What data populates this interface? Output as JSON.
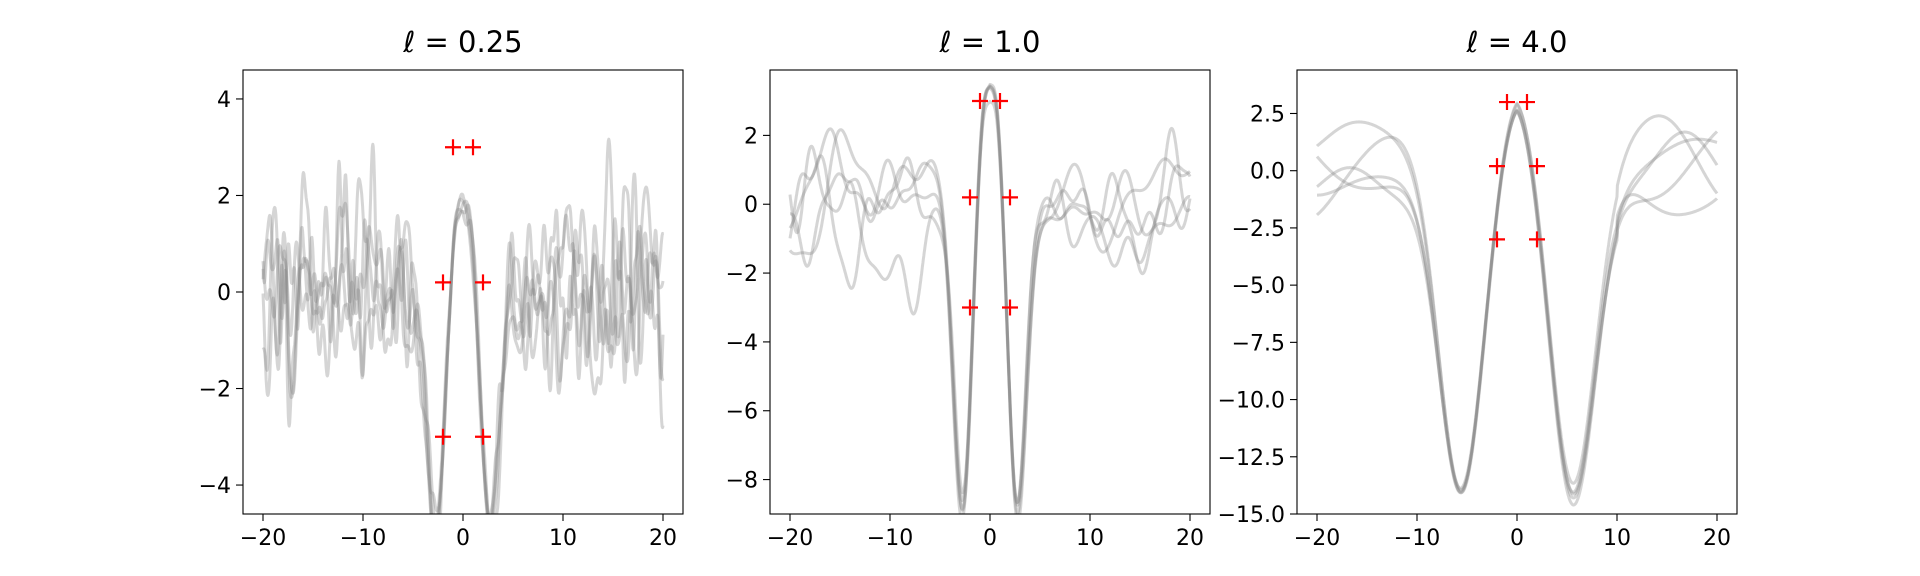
{
  "colors": {
    "samples": "#888888",
    "observations": "#ff0000",
    "axes": "#000000",
    "background": "#ffffff"
  },
  "chart_data": [
    {
      "type": "line",
      "title": "ℓ = 0.25",
      "lengthscale": 0.25,
      "xlim": [
        -22,
        22
      ],
      "ylim": [
        -4.6,
        4.6
      ],
      "xticks": [
        -20,
        -10,
        0,
        10,
        20
      ],
      "xtick_labels": [
        "−20",
        "−10",
        "0",
        "10",
        "20"
      ],
      "yticks": [
        -4,
        -2,
        0,
        2,
        4
      ],
      "ytick_labels": [
        "−4",
        "−2",
        "0",
        "2",
        "4"
      ],
      "n_samples": 5,
      "observations": {
        "x": [
          -2,
          -1,
          1,
          2,
          -2,
          2
        ],
        "y": [
          0.2,
          3.0,
          3.0,
          0.2,
          -3.0,
          -3.0
        ]
      }
    },
    {
      "type": "line",
      "title": "ℓ = 1.0",
      "lengthscale": 1.0,
      "xlim": [
        -22,
        22
      ],
      "ylim": [
        -9.0,
        3.9
      ],
      "xticks": [
        -20,
        -10,
        0,
        10,
        20
      ],
      "xtick_labels": [
        "−20",
        "−10",
        "0",
        "10",
        "20"
      ],
      "yticks": [
        -8,
        -6,
        -4,
        -2,
        0,
        2
      ],
      "ytick_labels": [
        "−8",
        "−6",
        "−4",
        "−2",
        "0",
        "2"
      ],
      "n_samples": 5,
      "observations": {
        "x": [
          -2,
          -1,
          1,
          2,
          -2,
          2
        ],
        "y": [
          0.2,
          3.0,
          3.0,
          0.2,
          -3.0,
          -3.0
        ]
      }
    },
    {
      "type": "line",
      "title": "ℓ = 4.0",
      "lengthscale": 4.0,
      "xlim": [
        -22,
        22
      ],
      "ylim": [
        -15.0,
        4.4
      ],
      "xticks": [
        -20,
        -10,
        0,
        10,
        20
      ],
      "xtick_labels": [
        "−20",
        "−10",
        "0",
        "10",
        "20"
      ],
      "yticks": [
        -15,
        -12.5,
        -10,
        -7.5,
        -5,
        -2.5,
        0,
        2.5
      ],
      "ytick_labels": [
        "−15.0",
        "−12.5",
        "−10.0",
        "−7.5",
        "−5.0",
        "−2.5",
        "0.0",
        "2.5"
      ],
      "n_samples": 5,
      "observations": {
        "x": [
          -2,
          -1,
          1,
          2,
          -2,
          2
        ],
        "y": [
          0.2,
          3.0,
          3.0,
          0.2,
          -3.0,
          -3.0
        ]
      }
    }
  ]
}
